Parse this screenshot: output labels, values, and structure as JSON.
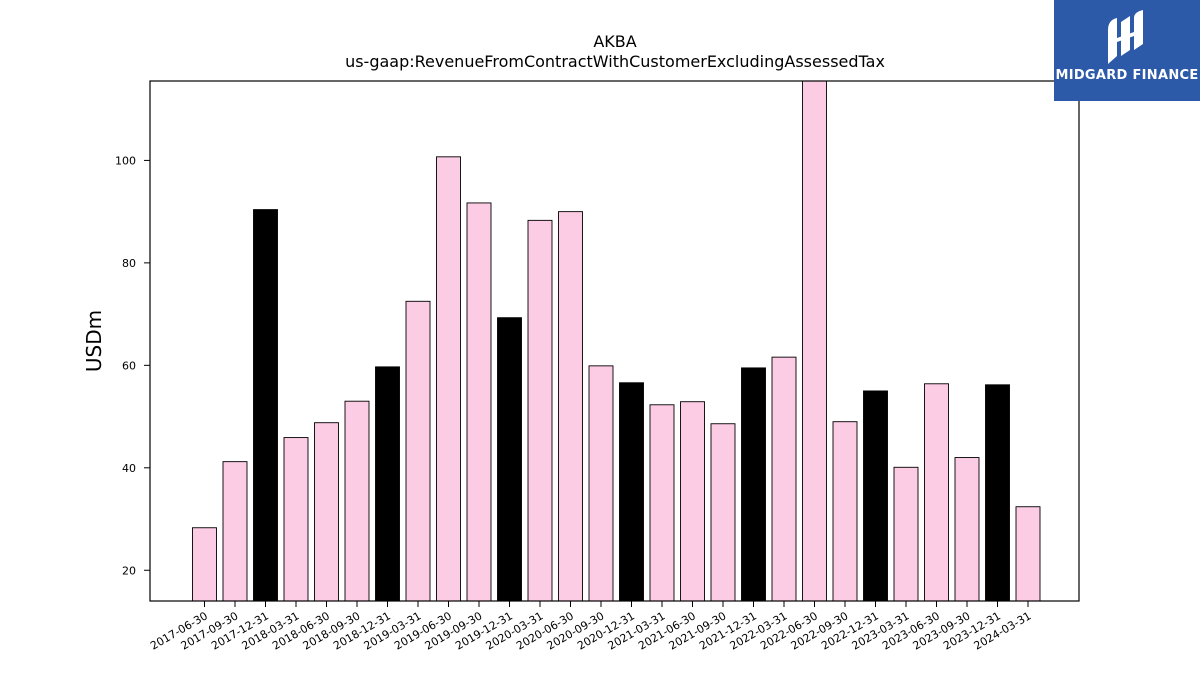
{
  "chart_data": {
    "type": "bar",
    "title": "AKBA",
    "subtitle": "us-gaap:RevenueFromContractWithCustomerExcludingAssessedTax",
    "xlabel": "",
    "ylabel": "USDm",
    "ylim": [
      14,
      115.5
    ],
    "yticks": [
      20,
      40,
      60,
      80,
      100
    ],
    "grid": false,
    "categories": [
      "2017-06-30",
      "2017-09-30",
      "2017-12-31",
      "2018-03-31",
      "2018-06-30",
      "2018-09-30",
      "2018-12-31",
      "2019-03-31",
      "2019-06-30",
      "2019-09-30",
      "2019-12-31",
      "2020-03-31",
      "2020-06-30",
      "2020-09-30",
      "2020-12-31",
      "2021-03-31",
      "2021-06-30",
      "2021-09-30",
      "2021-12-31",
      "2022-03-31",
      "2022-06-30",
      "2022-09-30",
      "2022-12-31",
      "2023-03-31",
      "2023-06-30",
      "2023-09-30",
      "2023-12-31",
      "2024-03-31"
    ],
    "values": [
      28.3,
      41.2,
      90.4,
      45.9,
      48.8,
      53.0,
      59.7,
      72.5,
      100.7,
      91.7,
      69.3,
      88.3,
      90.0,
      59.9,
      56.6,
      52.3,
      52.9,
      48.6,
      59.5,
      61.6,
      118.0,
      49.0,
      55.0,
      40.1,
      56.4,
      42.0,
      56.2,
      32.4
    ],
    "bar_colors": [
      "#fccbe4",
      "#fccbe4",
      "#000000",
      "#fccbe4",
      "#fccbe4",
      "#fccbe4",
      "#000000",
      "#fccbe4",
      "#fccbe4",
      "#fccbe4",
      "#000000",
      "#fccbe4",
      "#fccbe4",
      "#fccbe4",
      "#000000",
      "#fccbe4",
      "#fccbe4",
      "#fccbe4",
      "#000000",
      "#fccbe4",
      "#fccbe4",
      "#fccbe4",
      "#000000",
      "#fccbe4",
      "#fccbe4",
      "#fccbe4",
      "#000000",
      "#fccbe4"
    ]
  },
  "brand": {
    "name": "MIDGARD FINANCE",
    "background": "#2c5aa8"
  }
}
